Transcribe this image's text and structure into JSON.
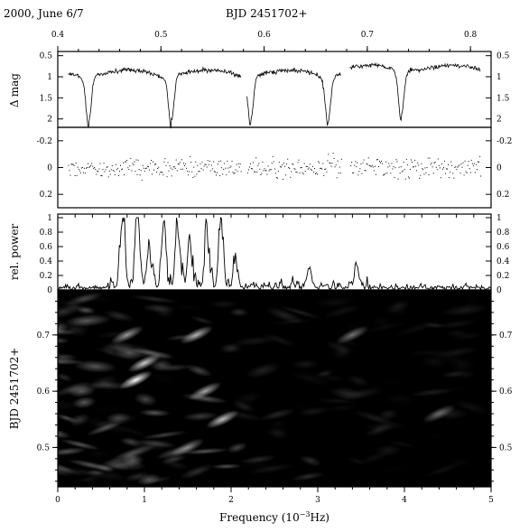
{
  "header": {
    "date_label": "2000, June 6/7",
    "time_axis_label": "BJD 2451702+"
  },
  "chart_data": [
    {
      "type": "line",
      "panel": "light-curve",
      "top_axis": {
        "label": "BJD 2451702+",
        "range": [
          0.4,
          0.82
        ],
        "tick_labels": [
          "0.4",
          "0.5",
          "0.6",
          "0.7",
          "0.8"
        ]
      },
      "ylabel": "Δ mag",
      "ylabel_symbol": "Δ",
      "ylabel_text": "mag",
      "ylim": [
        2.2,
        0.4
      ],
      "y_tick_labels": [
        "0.5",
        "1",
        "1.5",
        "2"
      ],
      "eclipse_times": [
        0.43,
        0.51,
        0.587,
        0.662,
        0.733
      ],
      "out_of_eclipse_mag": 0.9,
      "eclipse_depth_mag": 2.0,
      "data_gaps": [
        [
          0.578,
          0.583
        ],
        [
          0.675,
          0.683
        ]
      ]
    },
    {
      "type": "scatter",
      "panel": "residuals",
      "ylim": [
        0.3,
        -0.3
      ],
      "y_tick_labels": [
        "-0.2",
        "0",
        "0.2"
      ]
    },
    {
      "type": "line",
      "panel": "power-spectrum",
      "ylabel": "rel. power",
      "ylim": [
        0,
        1.05
      ],
      "y_tick_labels": [
        "0",
        "0.2",
        "0.4",
        "0.6",
        "0.8",
        "1"
      ],
      "peaks": [
        {
          "x": 0.75,
          "y": 0.95
        },
        {
          "x": 0.92,
          "y": 1.0
        },
        {
          "x": 1.05,
          "y": 0.5
        },
        {
          "x": 1.22,
          "y": 0.75
        },
        {
          "x": 1.38,
          "y": 0.8
        },
        {
          "x": 1.52,
          "y": 0.6
        },
        {
          "x": 1.72,
          "y": 0.65
        },
        {
          "x": 1.88,
          "y": 0.88
        },
        {
          "x": 2.05,
          "y": 0.3
        },
        {
          "x": 2.9,
          "y": 0.25
        },
        {
          "x": 3.45,
          "y": 0.3
        }
      ]
    },
    {
      "type": "heatmap",
      "panel": "dynamic-power-spectrum",
      "xlabel": "Frequency (10⁻³Hz)",
      "xlabel_text": "Frequency (10",
      "xlabel_exp": "−3",
      "xlabel_unit": "Hz)",
      "xlim": [
        0,
        5
      ],
      "x_tick_labels": [
        "0",
        "1",
        "2",
        "3",
        "4",
        "5"
      ],
      "ylabel": "BJD 2451702+",
      "ylim": [
        0.43,
        0.78
      ],
      "y_tick_labels": [
        "0.5",
        "0.6",
        "0.7"
      ],
      "bright_features": [
        {
          "x": 0.9,
          "y": 0.62,
          "intensity": 1.0
        },
        {
          "x": 1.0,
          "y": 0.65,
          "intensity": 0.8
        },
        {
          "x": 0.8,
          "y": 0.7,
          "intensity": 0.6
        },
        {
          "x": 1.6,
          "y": 0.7,
          "intensity": 0.7
        },
        {
          "x": 1.9,
          "y": 0.55,
          "intensity": 0.75
        },
        {
          "x": 1.5,
          "y": 0.5,
          "intensity": 0.5
        },
        {
          "x": 1.7,
          "y": 0.6,
          "intensity": 0.65
        },
        {
          "x": 3.4,
          "y": 0.7,
          "intensity": 0.45
        },
        {
          "x": 4.4,
          "y": 0.56,
          "intensity": 0.4
        }
      ],
      "colors": {
        "low": "#000000",
        "high": "#ffffff"
      }
    }
  ]
}
